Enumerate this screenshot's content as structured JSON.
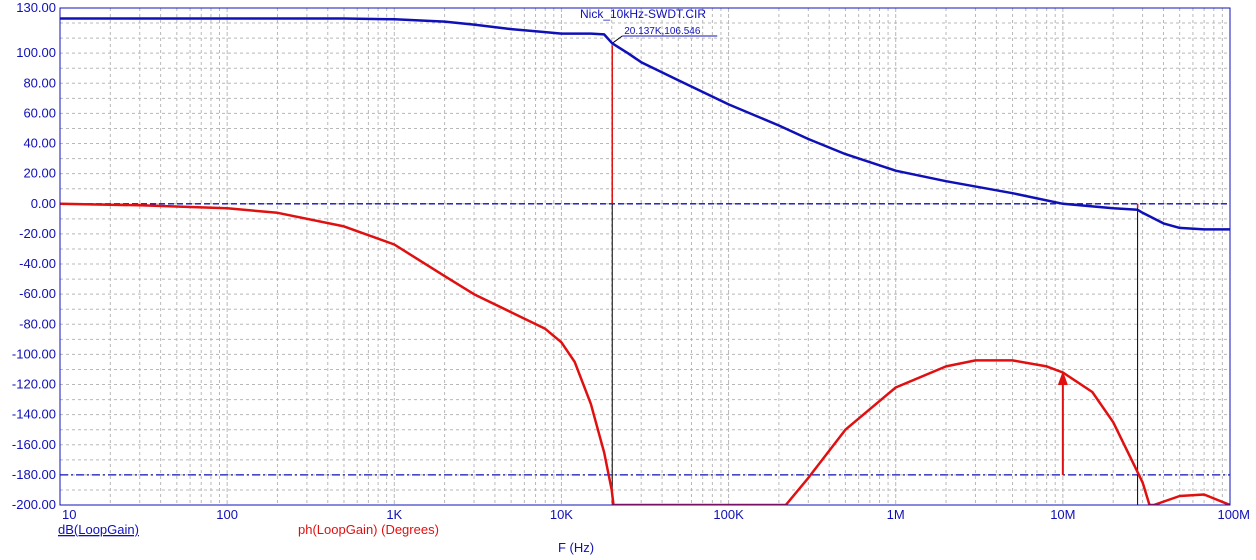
{
  "chart_data": {
    "type": "line",
    "title": "Nick_10kHz-SWDT.CIR",
    "xlabel": "F (Hz)",
    "x_scale": "log",
    "xlim": [
      10,
      100000000
    ],
    "ylim": [
      -200,
      130
    ],
    "grid": true,
    "x_ticks": [
      {
        "v": 10,
        "label": "10"
      },
      {
        "v": 100,
        "label": "100"
      },
      {
        "v": 1000,
        "label": "1K"
      },
      {
        "v": 10000,
        "label": "10K"
      },
      {
        "v": 100000,
        "label": "100K"
      },
      {
        "v": 1000000,
        "label": "1M"
      },
      {
        "v": 10000000,
        "label": "10M"
      },
      {
        "v": 100000000,
        "label": "100M"
      }
    ],
    "y_ticks": [
      {
        "v": 130,
        "label": "130.00"
      },
      {
        "v": 100,
        "label": "100.00"
      },
      {
        "v": 80,
        "label": "80.00"
      },
      {
        "v": 60,
        "label": "60.00"
      },
      {
        "v": 40,
        "label": "40.00"
      },
      {
        "v": 20,
        "label": "20.00"
      },
      {
        "v": 0,
        "label": "0.00"
      },
      {
        "v": -20,
        "label": "-20.00"
      },
      {
        "v": -40,
        "label": "-40.00"
      },
      {
        "v": -60,
        "label": "-60.00"
      },
      {
        "v": -80,
        "label": "-80.00"
      },
      {
        "v": -100,
        "label": "-100.00"
      },
      {
        "v": -120,
        "label": "-120.00"
      },
      {
        "v": -140,
        "label": "-140.00"
      },
      {
        "v": -160,
        "label": "-160.00"
      },
      {
        "v": -180,
        "label": "-180.00"
      },
      {
        "v": -200,
        "label": "-200.00"
      }
    ],
    "reference_lines": [
      {
        "y": 0,
        "color": "#1010b8",
        "style": "dashed"
      },
      {
        "y": -180,
        "color": "#1010b8",
        "style": "dash-dot"
      }
    ],
    "series": [
      {
        "name": "dB(LoopGain)",
        "color": "#1010b8",
        "x": [
          10,
          100,
          500,
          1000,
          2000,
          3000,
          5000,
          8000,
          10000,
          15000,
          18000,
          20137,
          25000,
          30000,
          50000,
          100000,
          200000,
          300000,
          500000,
          1000000,
          2000000,
          5000000,
          10000000,
          20000000,
          28000000,
          30000000,
          40000000,
          50000000,
          70000000,
          100000000
        ],
        "values": [
          123,
          123,
          123,
          122.5,
          121,
          119,
          116,
          114,
          113,
          113,
          112.5,
          106.546,
          100,
          94,
          82,
          66,
          52,
          43,
          33,
          22,
          15,
          7,
          0,
          -3,
          -4,
          -6,
          -13,
          -16,
          -17,
          -17
        ]
      },
      {
        "name": "ph(LoopGain) (Degrees)",
        "color": "#e01010",
        "x": [
          10,
          30,
          100,
          200,
          500,
          1000,
          2000,
          3000,
          5000,
          8000,
          10000,
          12000,
          15000,
          18000,
          20000,
          20500,
          220000,
          300000,
          500000,
          1000000,
          2000000,
          3000000,
          5000000,
          8000000,
          10000000,
          15000000,
          20000000,
          25000000,
          30000000,
          33000000,
          35000000,
          50000000,
          70000000,
          100000000
        ],
        "values": [
          0,
          -1,
          -3,
          -6,
          -15,
          -27,
          -48,
          -60,
          -72,
          -83,
          -92,
          -105,
          -133,
          -165,
          -190,
          -200,
          -200,
          -182,
          -150,
          -122,
          -108,
          -104,
          -104,
          -108,
          -112,
          -125,
          -145,
          -167,
          -185,
          -200,
          -200,
          -194,
          -193,
          -200
        ]
      }
    ],
    "cursors": [
      {
        "x": 20137,
        "y": 106.546,
        "label": "20.137K,106.546"
      },
      {
        "x": 28000000,
        "y": -4
      }
    ],
    "annotations": [
      {
        "type": "arrow",
        "x": 10000000,
        "y_from": -180,
        "y_to": -111,
        "color": "#e01010"
      }
    ]
  },
  "colors": {
    "axis": "#1010b8",
    "grid": "#b8b8b8",
    "gain": "#1010b8",
    "phase": "#e01010"
  }
}
